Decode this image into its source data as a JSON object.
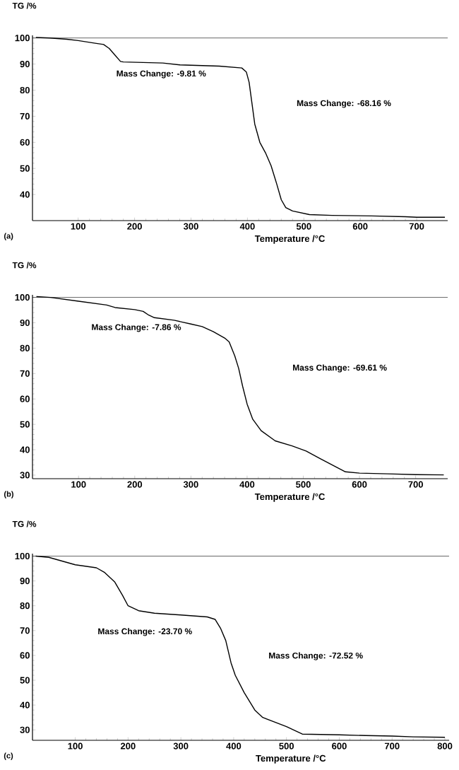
{
  "chart_data": [
    {
      "type": "line",
      "xlabel": "Temperature /°C",
      "ylabel": "TG /%",
      "color": "#000000",
      "xlim": [
        19,
        755
      ],
      "ylim": [
        30,
        101
      ],
      "xticks": [
        100,
        200,
        300,
        400,
        500,
        600,
        700
      ],
      "yticks": [
        40,
        50,
        60,
        70,
        80,
        90,
        100
      ],
      "x": [
        25,
        50,
        80,
        100,
        130,
        145,
        155,
        165,
        175,
        180,
        250,
        280,
        350,
        390,
        398,
        403,
        408,
        413,
        422,
        432,
        442,
        452,
        460,
        468,
        480,
        510,
        550,
        620,
        680,
        700,
        750
      ],
      "values": [
        100.2,
        100,
        99.5,
        99,
        98,
        97.5,
        96,
        93.5,
        91,
        90.8,
        90.4,
        89.7,
        89.2,
        88.5,
        87,
        83,
        75,
        67,
        60,
        56,
        51,
        44,
        38,
        35,
        33.7,
        32.3,
        32,
        31.8,
        31.5,
        31.3,
        31.3
      ],
      "ref_lines": [
        {
          "axis": "y",
          "value": 100
        }
      ],
      "annotations": [
        "Mass Change: -9.81 %",
        "Mass Change: -68.16 %",
        "(a)"
      ]
    },
    {
      "type": "line",
      "xlabel": "Temperature /°C",
      "ylabel": "TG /%",
      "color": "#000000",
      "xlim": [
        18,
        757
      ],
      "ylim": [
        28.6,
        101
      ],
      "xticks": [
        100,
        200,
        300,
        400,
        500,
        600,
        700
      ],
      "yticks": [
        30,
        40,
        50,
        60,
        70,
        80,
        90,
        100
      ],
      "x": [
        25,
        50,
        100,
        150,
        165,
        200,
        215,
        225,
        235,
        270,
        300,
        320,
        340,
        360,
        368,
        378,
        385,
        392,
        400,
        410,
        425,
        450,
        480,
        505,
        530,
        560,
        575,
        600,
        650,
        700,
        750
      ],
      "values": [
        100.3,
        100,
        98.5,
        97,
        96,
        95.2,
        94.5,
        93,
        92,
        91,
        89.5,
        88.5,
        86.5,
        84,
        82.5,
        77,
        72,
        65,
        58,
        52,
        47.5,
        43.5,
        41.5,
        39.5,
        36.5,
        33,
        31.3,
        30.8,
        30.5,
        30.2,
        30.1
      ],
      "ref_lines": [
        {
          "axis": "y",
          "value": 100
        }
      ],
      "annotations": [
        "Mass Change: -7.86 %",
        "Mass Change: -69.61 %",
        "(b)"
      ]
    },
    {
      "type": "line",
      "xlabel": "Temperature /°C",
      "ylabel": "TG /%",
      "color": "#000000",
      "xlim": [
        19,
        808
      ],
      "ylim": [
        25.8,
        101
      ],
      "xticks": [
        100,
        200,
        300,
        400,
        500,
        600,
        700,
        800
      ],
      "yticks": [
        30,
        40,
        50,
        60,
        70,
        80,
        90,
        100
      ],
      "x": [
        25,
        50,
        100,
        140,
        155,
        175,
        190,
        200,
        220,
        250,
        300,
        350,
        365,
        375,
        385,
        395,
        403,
        420,
        440,
        455,
        500,
        530,
        600,
        650,
        700,
        740,
        800
      ],
      "values": [
        100,
        99.5,
        96.5,
        95.3,
        93.5,
        89.5,
        84,
        80,
        78,
        77,
        76.3,
        75.5,
        74.5,
        71,
        66,
        57,
        52,
        45,
        38,
        35,
        31.3,
        28.3,
        28,
        27.7,
        27.5,
        27.2,
        27
      ],
      "ref_lines": [
        {
          "axis": "y",
          "value": 100
        }
      ],
      "annotations": [
        "Mass Change: -23.70 %",
        "Mass Change: -72.52 %",
        "(c)"
      ]
    }
  ]
}
